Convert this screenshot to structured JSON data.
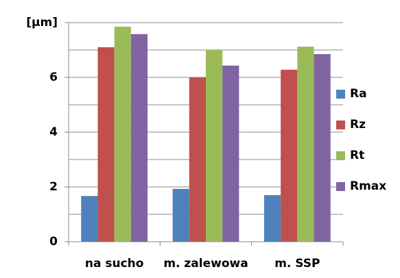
{
  "chart_data": {
    "type": "bar",
    "categories": [
      "na sucho",
      "m. zalewowa",
      "m. SSP"
    ],
    "series": [
      {
        "name": "Ra",
        "color": "#4f81bd",
        "values": [
          1.67,
          1.93,
          1.7
        ]
      },
      {
        "name": "Rz",
        "color": "#c0504d",
        "values": [
          7.1,
          6.0,
          6.28
        ]
      },
      {
        "name": "Rt",
        "color": "#9bbb59",
        "values": [
          7.85,
          7.0,
          7.12
        ]
      },
      {
        "name": "Rmax",
        "color": "#8064a2",
        "values": [
          7.58,
          6.43,
          6.85
        ]
      }
    ],
    "ylim": [
      0,
      8
    ],
    "yticks": [
      0,
      2,
      4,
      6,
      {
        "value": 8,
        "label": "[µm]"
      }
    ],
    "minor_yticks": [
      1,
      3,
      5,
      7
    ],
    "grid": true,
    "legend": "right"
  }
}
